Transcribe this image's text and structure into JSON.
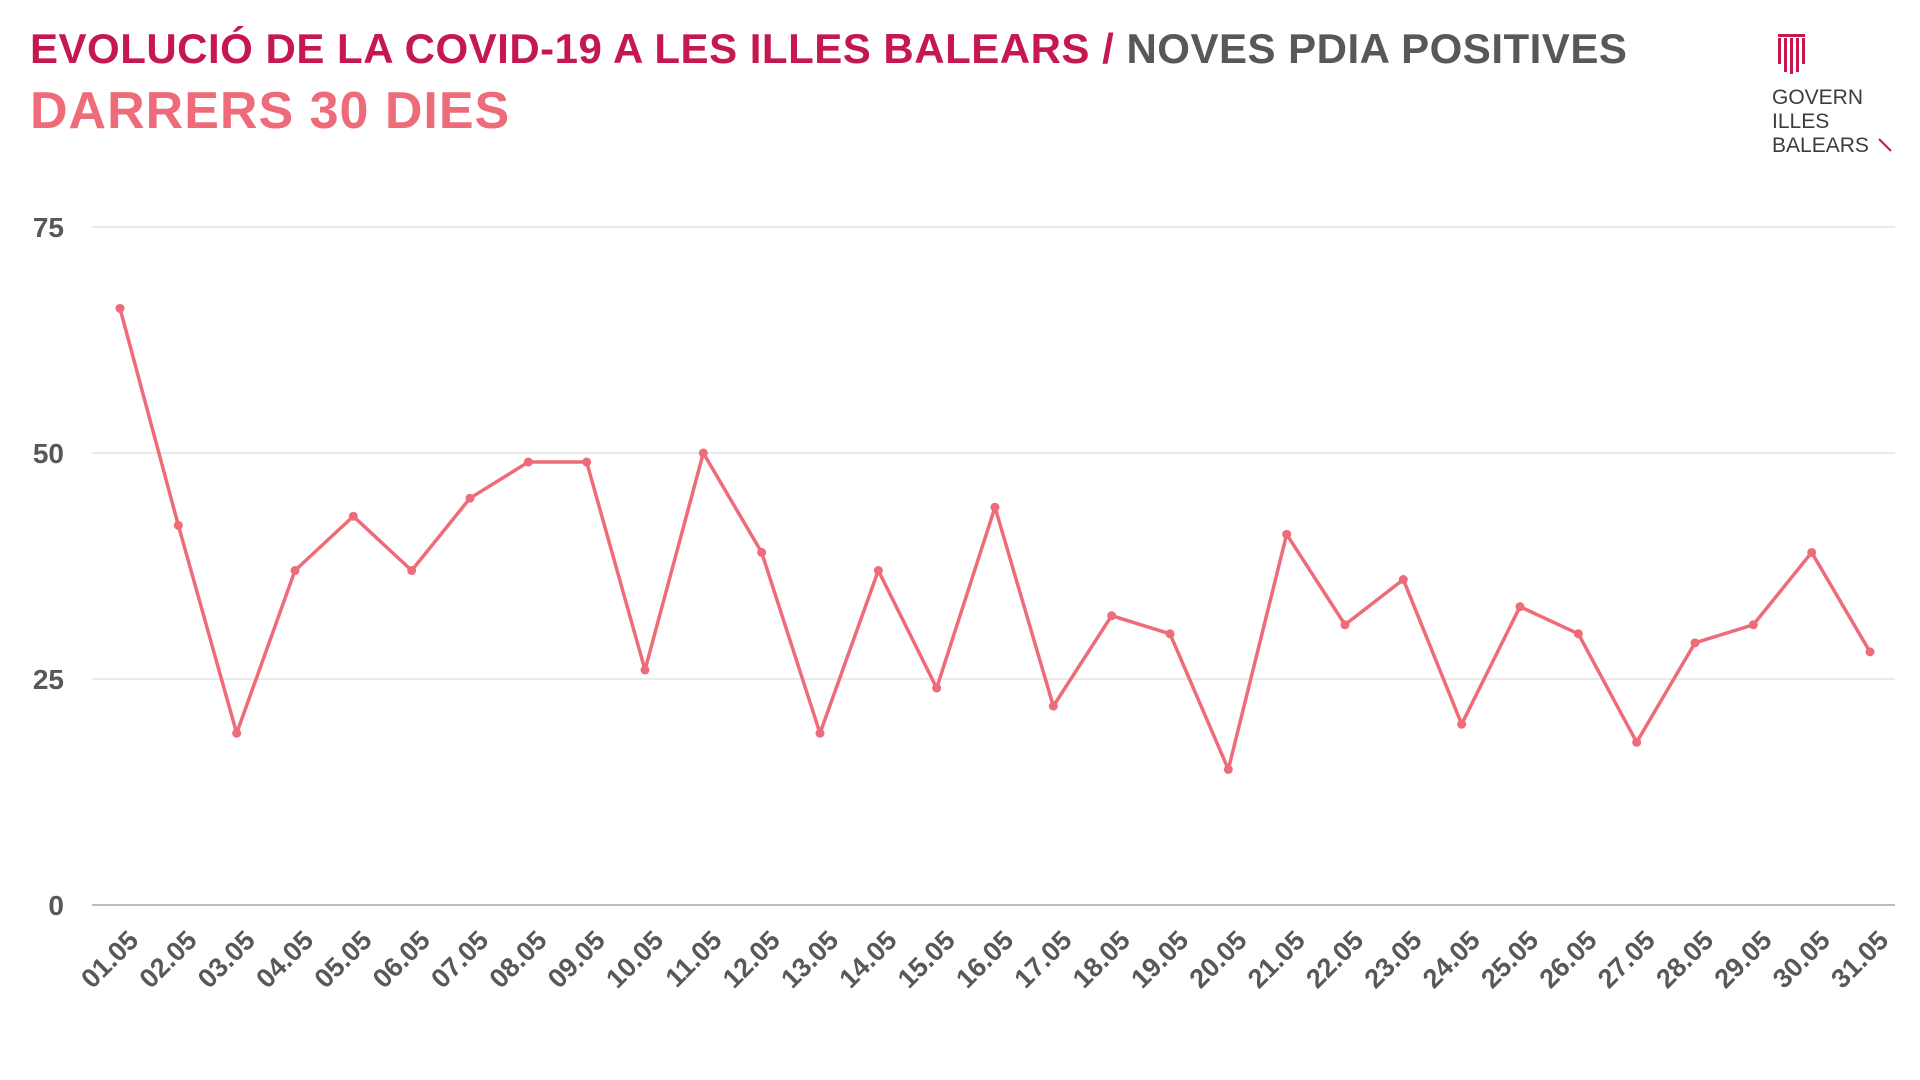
{
  "header": {
    "title_main": "EVOLUCIÓ DE LA COVID-19 A LES ILLES BALEARS",
    "title_sep": "/",
    "title_sub": "NOVES PDIA POSITIVES",
    "subtitle": "DARRERS 30 DIES"
  },
  "logo": {
    "icon": "govern-balear-emblem-icon",
    "line1": "GOVERN",
    "line2": "ILLES",
    "line3": "BALEARS"
  },
  "colors": {
    "title": "#c4184f",
    "subtitle": "#ee6b79",
    "series": "#ee6b79",
    "grid": "#dddddd",
    "tick": "#58585a"
  },
  "chart_data": {
    "type": "line",
    "title": "",
    "xlabel": "",
    "ylabel": "",
    "ylim": [
      0,
      75
    ],
    "yticks": [
      0,
      25,
      50,
      75
    ],
    "grid": true,
    "categories": [
      "01.05",
      "02.05",
      "03.05",
      "04.05",
      "05.05",
      "06.05",
      "07.05",
      "08.05",
      "09.05",
      "10.05",
      "11.05",
      "12.05",
      "13.05",
      "14.05",
      "15.05",
      "16.05",
      "17.05",
      "18.05",
      "19.05",
      "20.05",
      "21.05",
      "22.05",
      "23.05",
      "24.05",
      "25.05",
      "26.05",
      "27.05",
      "28.05",
      "29.05",
      "30.05",
      "31.05"
    ],
    "series": [
      {
        "values": [
          66,
          42,
          19,
          37,
          43,
          37,
          45,
          49,
          49,
          26,
          50,
          39,
          19,
          37,
          24,
          44,
          22,
          32,
          30,
          15,
          41,
          31,
          36,
          20,
          33,
          30,
          18,
          29,
          31,
          39,
          28
        ]
      }
    ]
  }
}
